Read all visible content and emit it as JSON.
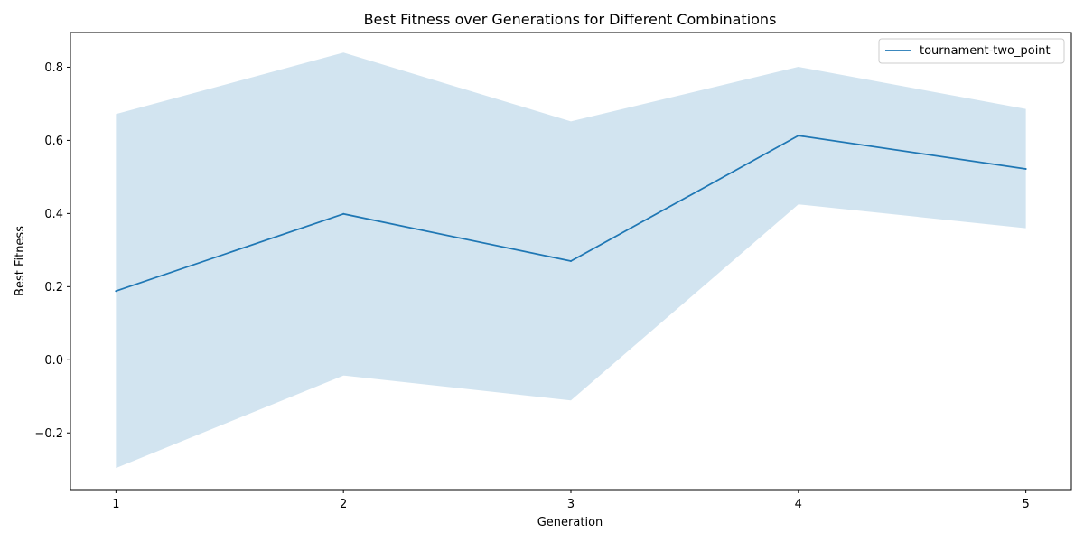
{
  "chart_data": {
    "type": "line",
    "title": "Best Fitness over Generations for Different Combinations",
    "xlabel": "Generation",
    "ylabel": "Best Fitness",
    "x": [
      1,
      2,
      3,
      4,
      5
    ],
    "x_ticks": [
      "1",
      "2",
      "3",
      "4",
      "5"
    ],
    "xlim": [
      0.8,
      5.2
    ],
    "ylim": [
      -0.355,
      0.895
    ],
    "y_ticks": [
      -0.2,
      0.0,
      0.2,
      0.4,
      0.6,
      0.8
    ],
    "y_tick_labels": [
      "−0.2",
      "0.0",
      "0.2",
      "0.4",
      "0.6",
      "0.8"
    ],
    "grid": false,
    "legend_position": "top-right",
    "series": [
      {
        "name": "tournament-two_point",
        "values": [
          0.188,
          0.399,
          0.27,
          0.613,
          0.522
        ],
        "band_upper": [
          0.672,
          0.84,
          0.652,
          0.801,
          0.686
        ],
        "band_lower": [
          -0.296,
          -0.043,
          -0.111,
          0.425,
          0.36
        ],
        "color": "#1f77b4",
        "band_color": "#1f77b4",
        "band_opacity": 0.2
      }
    ]
  }
}
